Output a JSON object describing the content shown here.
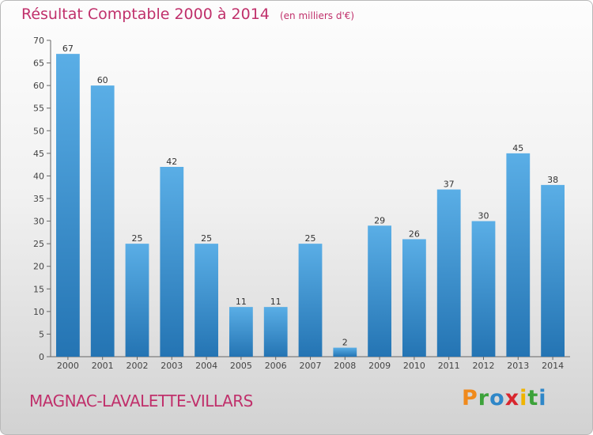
{
  "title": "Résultat Comptable 2000 à 2014",
  "unit": "(en milliers d'€)",
  "commune": "MAGNAC-LAVALETTE-VILLARS",
  "logo": {
    "letters": [
      "P",
      "r",
      "o",
      "x",
      "i",
      "t",
      "i"
    ],
    "colors": [
      "#f08a1c",
      "#3da23a",
      "#2f87c8",
      "#d8262e",
      "#f0b400",
      "#3da23a",
      "#2f87c8"
    ]
  },
  "chart_data": {
    "type": "bar",
    "categories": [
      "2000",
      "2001",
      "2002",
      "2003",
      "2004",
      "2005",
      "2006",
      "2007",
      "2008",
      "2009",
      "2010",
      "2011",
      "2012",
      "2013",
      "2014"
    ],
    "values": [
      67,
      60,
      25,
      42,
      25,
      11,
      11,
      25,
      2,
      29,
      26,
      37,
      30,
      45,
      38
    ],
    "ylim": [
      0,
      70
    ],
    "yticks": [
      0,
      5,
      10,
      15,
      20,
      25,
      30,
      35,
      40,
      45,
      50,
      55,
      60,
      65,
      70
    ],
    "grid": false,
    "bar_color_top": "#5aaee6",
    "bar_color_bottom": "#2474b3",
    "text_color": "#c0306b"
  }
}
